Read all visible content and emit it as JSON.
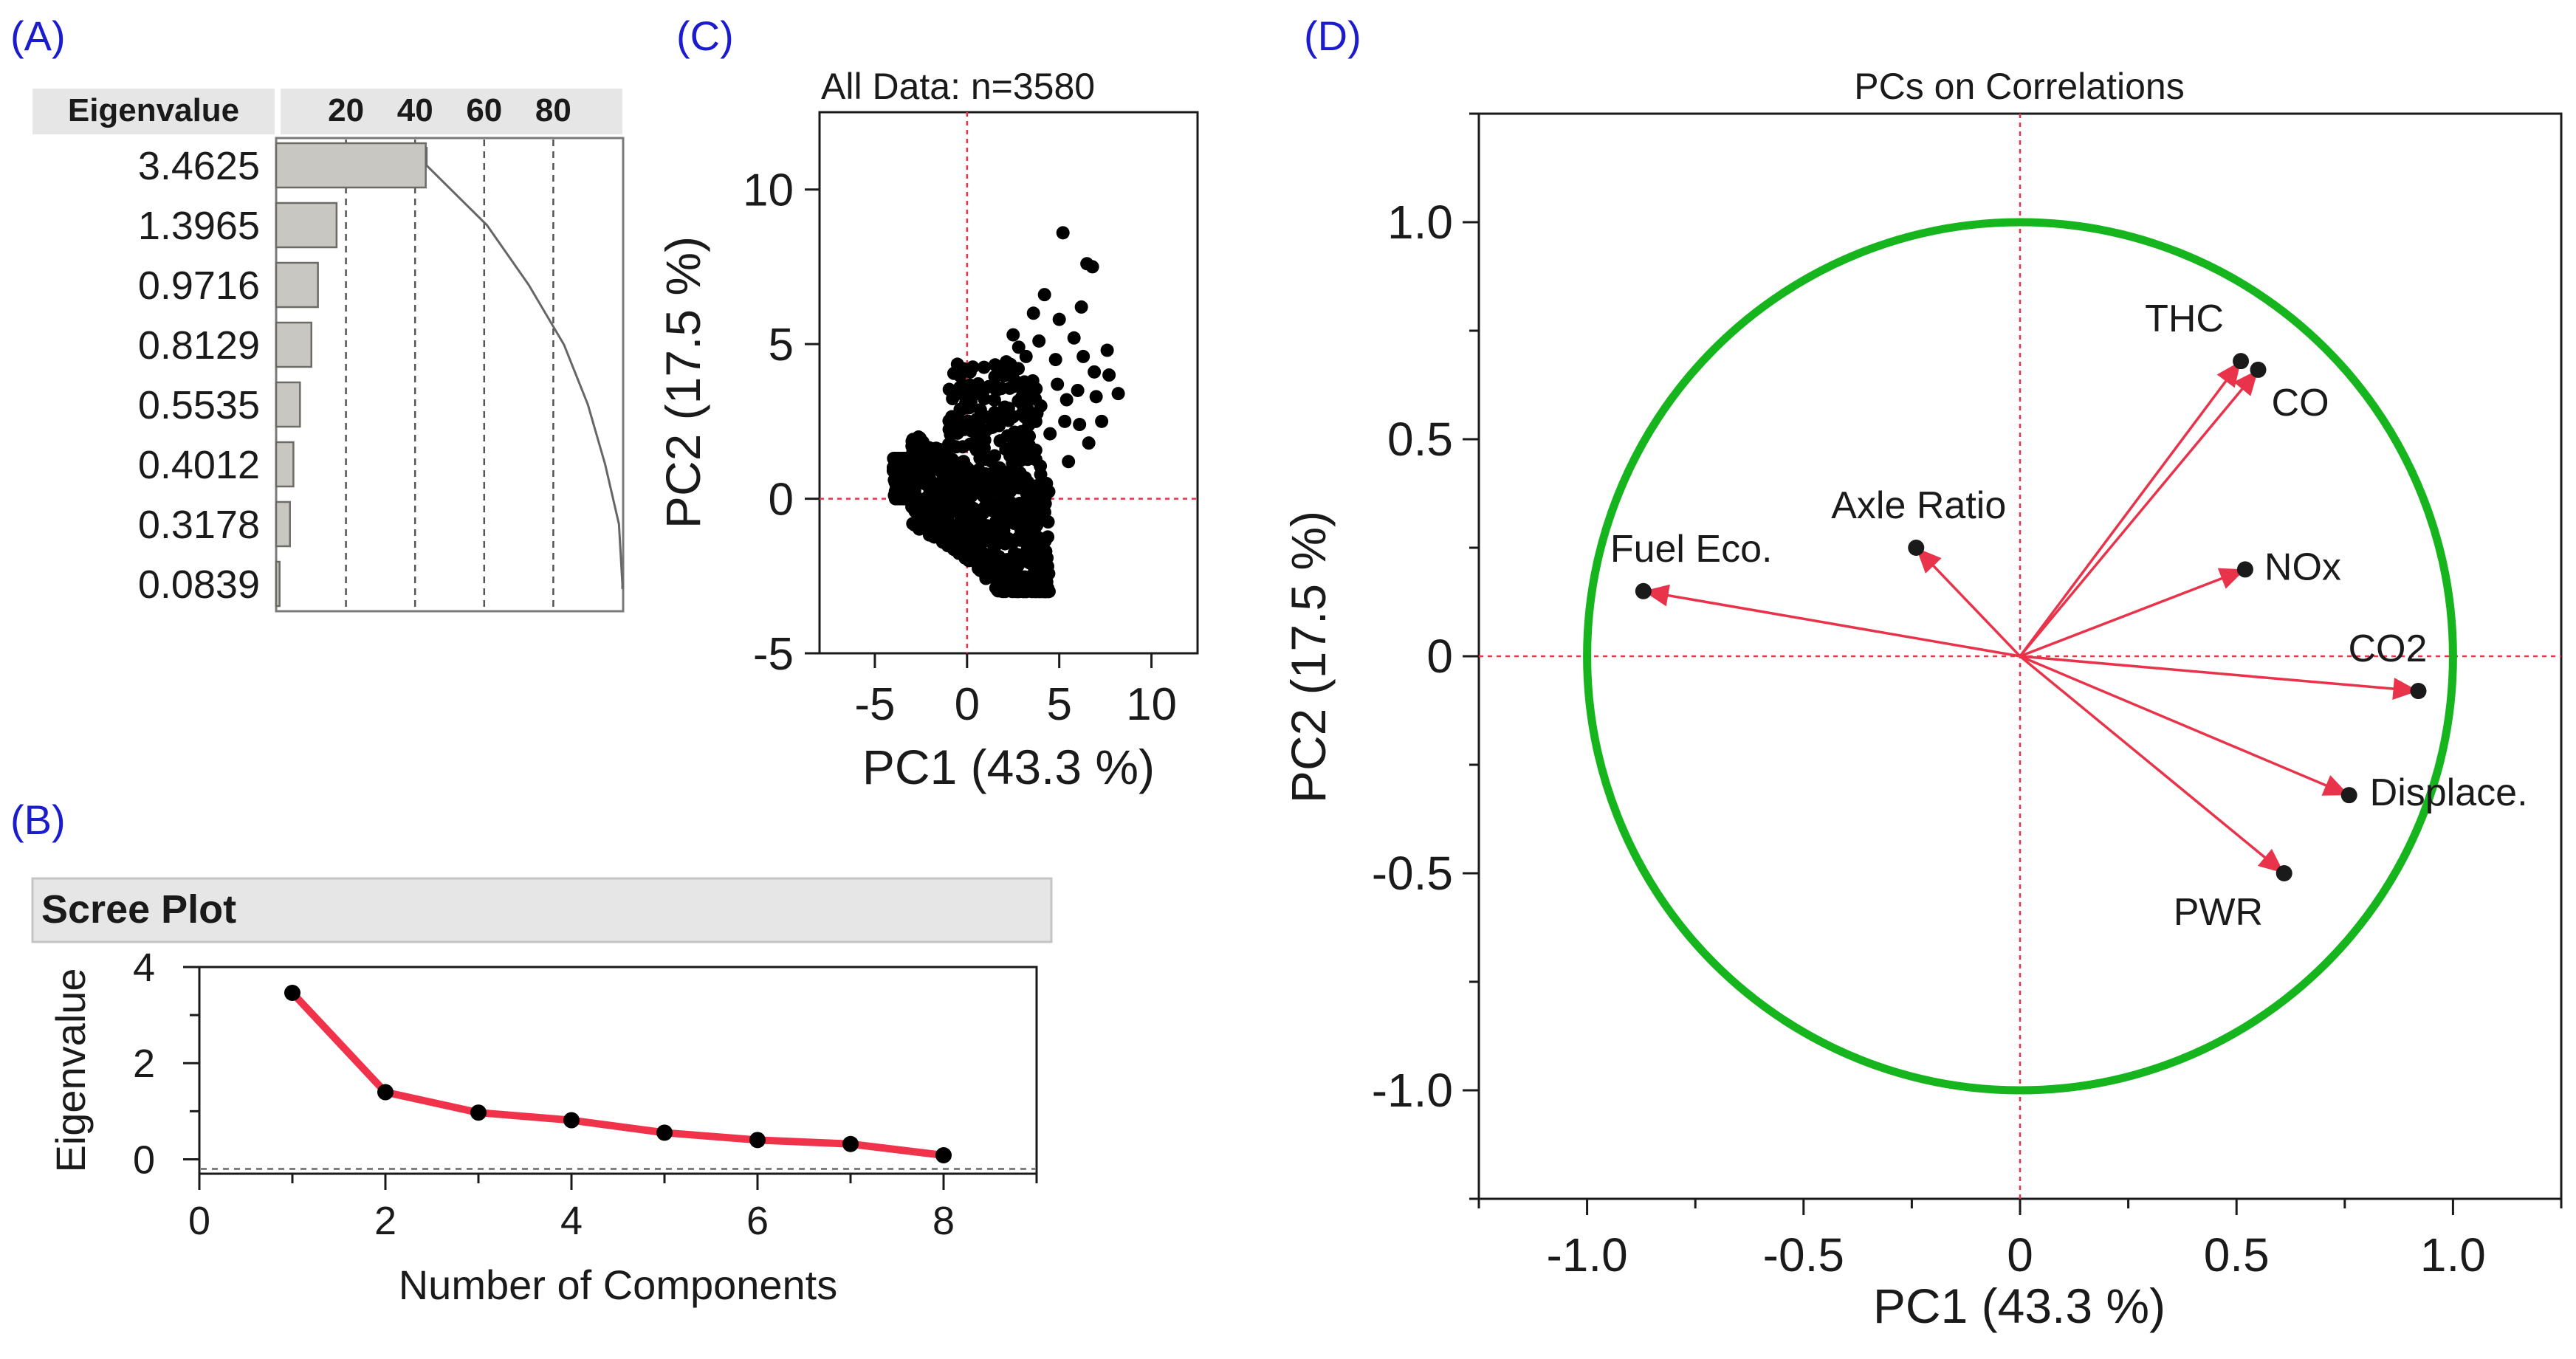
{
  "colors": {
    "panel_label": "#1c1ccf",
    "bar_fill": "#c9c7c2",
    "bar_stroke": "#6d6b66",
    "scree_line": "#f0324a",
    "points": "#000000",
    "arrows": "#e8334a",
    "circle": "#16b51e",
    "ref_lines": "#e8334a",
    "header_bg": "#e6e6e6"
  },
  "panels": {
    "a": {
      "label": "(A)"
    },
    "b": {
      "label": "(B)"
    },
    "c": {
      "label": "(C)"
    },
    "d": {
      "label": "(D)"
    }
  },
  "chart_data": [
    {
      "id": "A",
      "type": "bar",
      "orientation": "horizontal",
      "header": "Eigenvalue",
      "axis_ticks": [
        "20",
        "40",
        "60",
        "80"
      ],
      "xlim": [
        0,
        100
      ],
      "grid": "dashed vertical lines at 20, 40, 60, 80",
      "categories": [
        "3.4625",
        "1.3965",
        "0.9716",
        "0.8129",
        "0.5535",
        "0.4012",
        "0.3178",
        "0.0839"
      ],
      "values_percent": [
        43.3,
        17.5,
        12.1,
        10.2,
        6.9,
        5.0,
        4.0,
        1.0
      ],
      "cumulative_percent": [
        43.3,
        60.8,
        72.9,
        83.1,
        90.0,
        95.0,
        99.0,
        100.0
      ]
    },
    {
      "id": "B",
      "type": "line",
      "title": "Scree Plot",
      "xlabel": "Number of Components",
      "ylabel": "Eigenvalue",
      "xlim": [
        0,
        9
      ],
      "ylim": [
        -0.3,
        4
      ],
      "xticks": [
        "0",
        "2",
        "4",
        "6",
        "8"
      ],
      "yticks": [
        "0",
        "2",
        "4"
      ],
      "reference_line_y": -0.2,
      "x": [
        1,
        2,
        3,
        4,
        5,
        6,
        7,
        8
      ],
      "y": [
        3.4625,
        1.3965,
        0.9716,
        0.8129,
        0.5535,
        0.4012,
        0.3178,
        0.0839
      ]
    },
    {
      "id": "C",
      "type": "scatter",
      "title": "All Data: n=3580",
      "xlabel": "PC1  (43.3 %)",
      "ylabel": "PC2  (17.5 %)",
      "xlim": [
        -8,
        12.5
      ],
      "ylim": [
        -5,
        12.5
      ],
      "xticks": [
        "-5",
        "0",
        "5",
        "10"
      ],
      "yticks": [
        "-5",
        "0",
        "5",
        "10"
      ],
      "reference_lines": {
        "x": 0,
        "y": 0
      },
      "cluster_center": [
        0.5,
        -0.5
      ],
      "outliers": [
        [
          5.2,
          8.6
        ],
        [
          6.5,
          7.6
        ],
        [
          6.8,
          7.5
        ],
        [
          4.2,
          6.6
        ],
        [
          6.2,
          6.2
        ],
        [
          3.6,
          6.0
        ],
        [
          5.8,
          5.2
        ],
        [
          7.6,
          4.8
        ],
        [
          4.8,
          4.5
        ],
        [
          6.9,
          4.1
        ],
        [
          2.8,
          4.9
        ],
        [
          8.2,
          3.4
        ],
        [
          3.2,
          4.6
        ],
        [
          5.4,
          3.2
        ],
        [
          7.7,
          4.0
        ],
        [
          4.5,
          2.1
        ],
        [
          6.1,
          2.4
        ],
        [
          3.4,
          2.6
        ],
        [
          5.5,
          1.2
        ],
        [
          2.9,
          3.6
        ],
        [
          6.6,
          1.8
        ],
        [
          4.0,
          3.0
        ],
        [
          7.3,
          2.5
        ],
        [
          5.0,
          5.8
        ],
        [
          2.5,
          5.3
        ],
        [
          6.3,
          4.6
        ],
        [
          4.9,
          3.7
        ],
        [
          3.9,
          5.1
        ],
        [
          6.0,
          3.5
        ],
        [
          7.0,
          3.3
        ],
        [
          5.3,
          2.5
        ],
        [
          3.0,
          1.5
        ]
      ]
    },
    {
      "id": "D",
      "type": "scatter",
      "subtype": "loading-biplot",
      "title": "PCs on Correlations",
      "xlabel": "PC1  (43.3 %)",
      "ylabel": "PC2  (17.5 %)",
      "xlim": [
        -1.25,
        1.25
      ],
      "ylim": [
        -1.25,
        1.25
      ],
      "xticks": [
        "-1.0",
        "-0.5",
        "0",
        "0.5",
        "1.0"
      ],
      "yticks": [
        "-1.0",
        "-0.5",
        "0",
        "0.5",
        "1.0"
      ],
      "unit_circle": true,
      "reference_lines": {
        "x": 0,
        "y": 0
      },
      "vectors": [
        {
          "name": "THC",
          "x": 0.51,
          "y": 0.68
        },
        {
          "name": "CO",
          "x": 0.55,
          "y": 0.66
        },
        {
          "name": "NOx",
          "x": 0.52,
          "y": 0.2
        },
        {
          "name": "CO2",
          "x": 0.92,
          "y": -0.08
        },
        {
          "name": "Displace.",
          "x": 0.76,
          "y": -0.32
        },
        {
          "name": "PWR",
          "x": 0.61,
          "y": -0.5
        },
        {
          "name": "Axle Ratio",
          "x": -0.24,
          "y": 0.25
        },
        {
          "name": "Fuel Eco.",
          "x": -0.87,
          "y": 0.15
        }
      ]
    }
  ]
}
